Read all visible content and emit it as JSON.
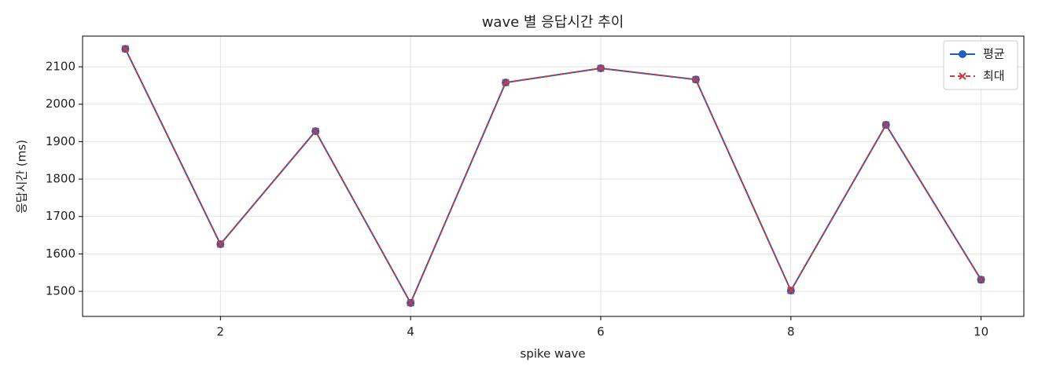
{
  "chart_data": {
    "type": "line",
    "title": "wave 별 응답시간 추이",
    "xlabel": "spike wave",
    "ylabel": "응답시간 (ms)",
    "x": [
      1,
      2,
      3,
      4,
      5,
      6,
      7,
      8,
      9,
      10
    ],
    "series": [
      {
        "name": "평균",
        "color": "#1f5fbf",
        "values": [
          2148,
          1626,
          1928,
          1469,
          2058,
          2096,
          2066,
          1502,
          1945,
          1531
        ]
      },
      {
        "name": "최대",
        "color": "#d03a3a",
        "values": [
          2148,
          1626,
          1928,
          1469,
          2058,
          2096,
          2066,
          1502,
          1945,
          1531
        ]
      }
    ],
    "xlim": [
      0.55,
      10.45
    ],
    "xticks": [
      2,
      4,
      6,
      8,
      10
    ],
    "ylim": [
      1433,
      2182
    ],
    "yticks": [
      1500,
      1600,
      1700,
      1800,
      1900,
      2000,
      2100
    ],
    "grid": true,
    "legend": "upper right"
  }
}
